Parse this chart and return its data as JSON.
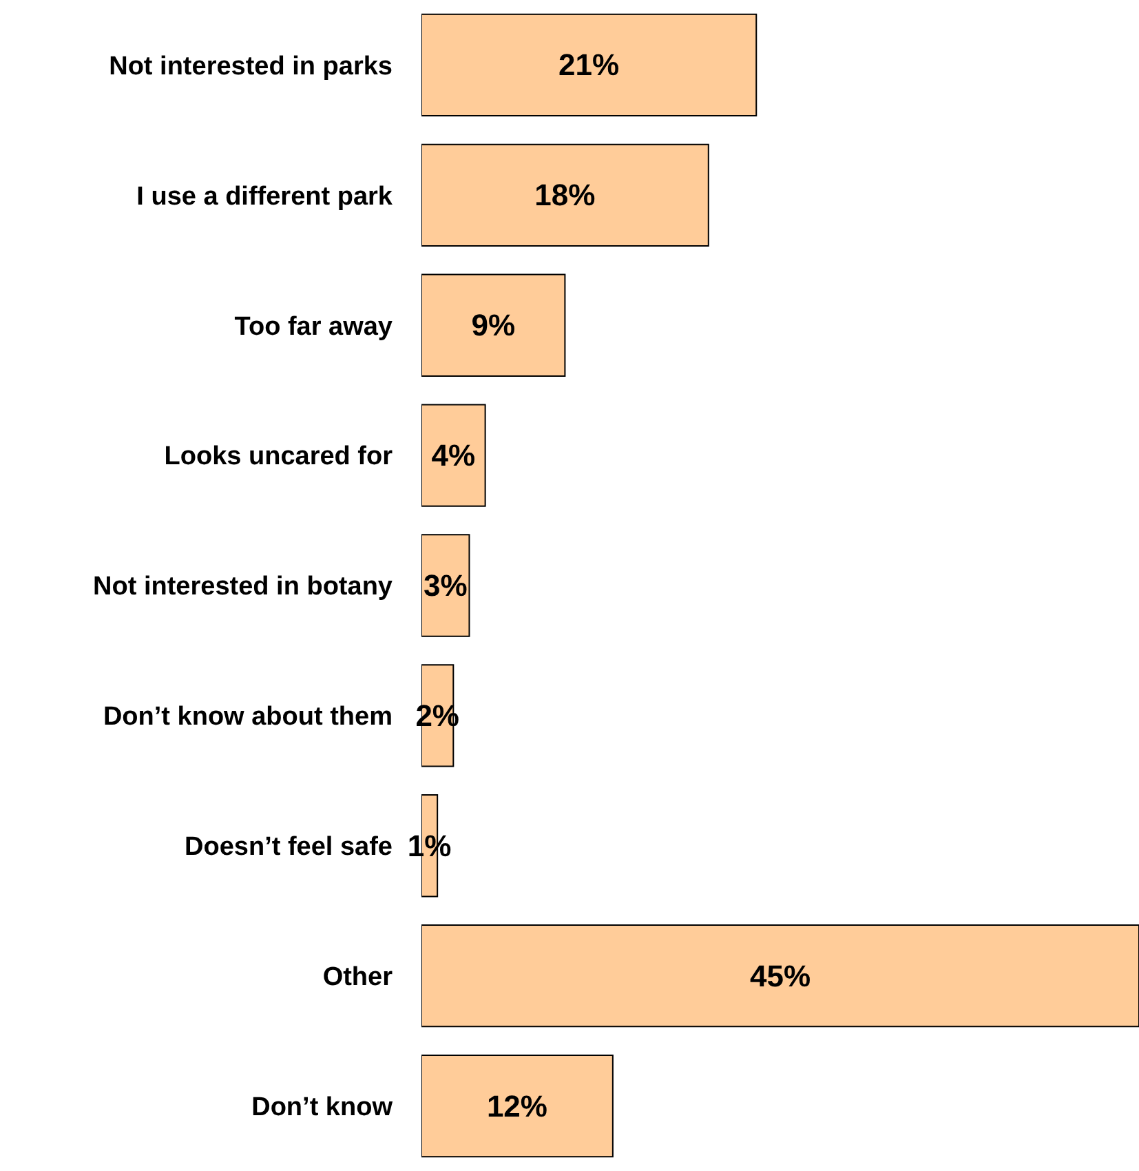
{
  "chart_data": {
    "type": "bar",
    "orientation": "horizontal",
    "categories": [
      "Not interested in parks",
      "I use a different park",
      "Too far away",
      "Looks uncared for",
      "Not interested in botany",
      "Don’t know about them",
      "Doesn’t feel safe",
      "Other",
      "Don’t know"
    ],
    "values": [
      21,
      18,
      9,
      4,
      3,
      2,
      1,
      45,
      12
    ],
    "value_labels": [
      "21%",
      "18%",
      "9%",
      "4%",
      "3%",
      "2%",
      "1%",
      "45%",
      "12%"
    ],
    "color": "#ffcc99"
  }
}
